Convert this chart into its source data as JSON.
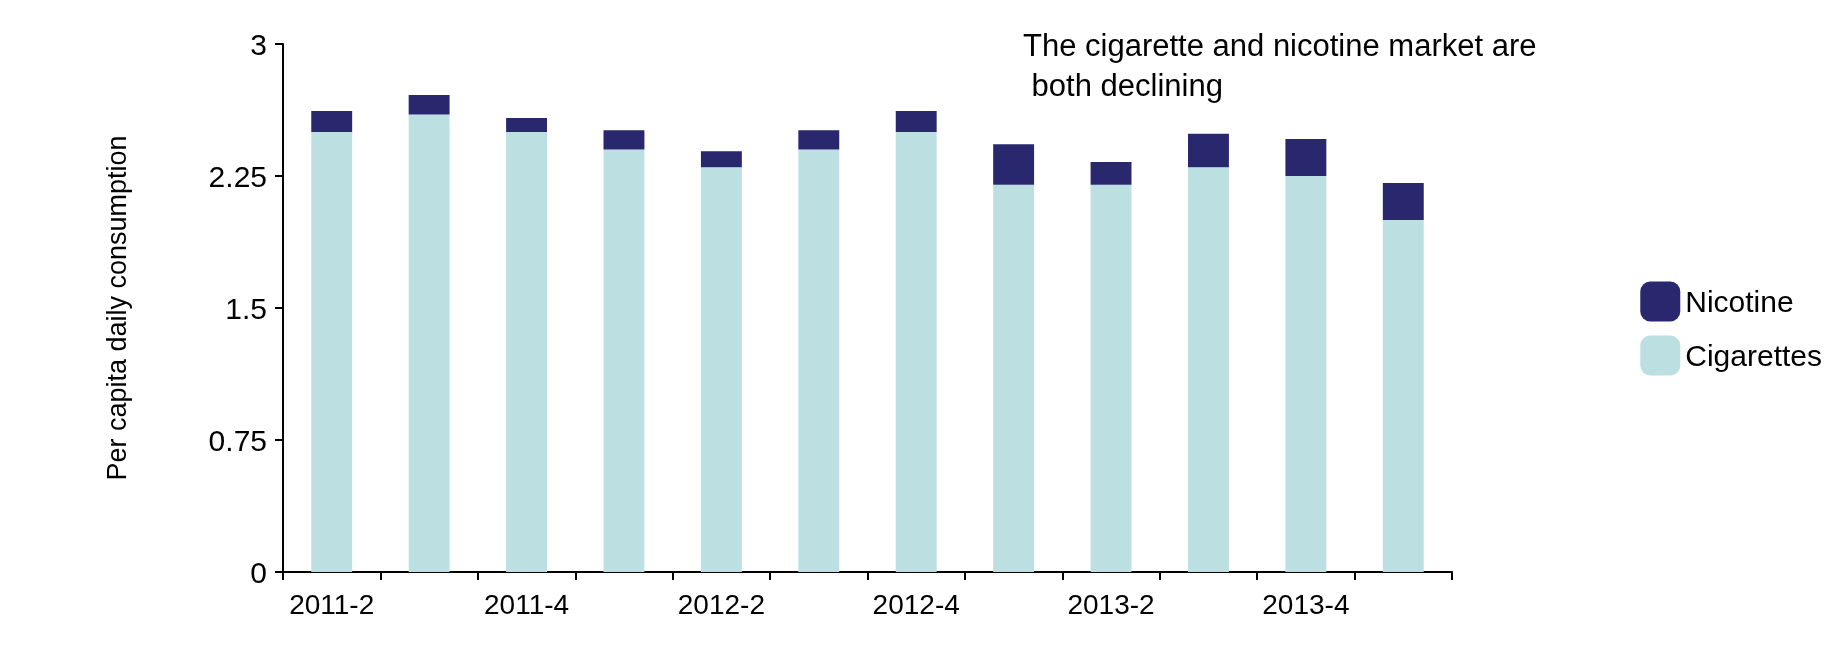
{
  "chart_data": {
    "type": "bar",
    "title": "The cigarette and nicotine market are both declining",
    "ylabel": "Per capita daily consumption",
    "categories": [
      "2011-2",
      null,
      "2011-4",
      null,
      "2012-2",
      null,
      "2012-4",
      null,
      "2013-2",
      null,
      "2013-4",
      null
    ],
    "stacked": true,
    "series": [
      {
        "name": "Cigarettes",
        "color": "#bce0e2",
        "values": [
          2.5,
          2.6,
          2.5,
          2.4,
          2.3,
          2.4,
          2.5,
          2.2,
          2.2,
          2.3,
          2.25,
          2.0
        ]
      },
      {
        "name": "Nicotine",
        "color": "#29286f",
        "values": [
          0.12,
          0.11,
          0.08,
          0.11,
          0.09,
          0.11,
          0.12,
          0.23,
          0.13,
          0.19,
          0.21,
          0.21
        ]
      }
    ],
    "ylim": [
      0,
      3
    ],
    "yticks": [
      0,
      0.75,
      1.5,
      2.25,
      3
    ],
    "grid": false,
    "legend": "right"
  }
}
